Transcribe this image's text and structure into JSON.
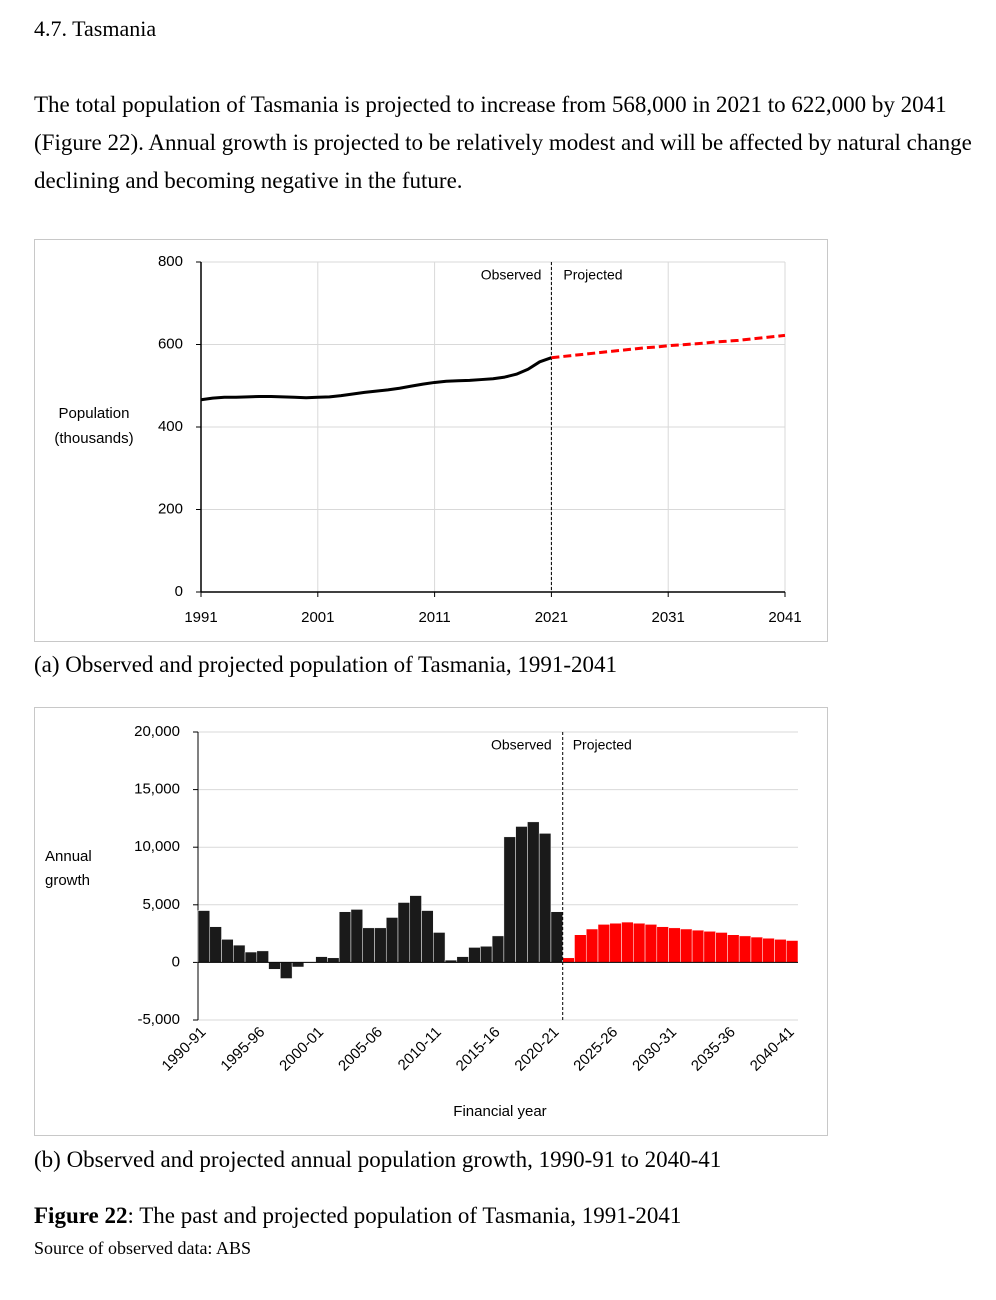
{
  "heading": "4.7. Tasmania",
  "paragraph": "The total population of Tasmania is projected to increase from 568,000 in 2021 to 622,000 by 2041 (Figure 22). Annual growth is projected to be relatively modest and will be affected by natural change declining and becoming negative in the future.",
  "chart_data": [
    {
      "type": "line",
      "ylabel": [
        "Population",
        "(thousands)"
      ],
      "xlim": [
        1991,
        2041
      ],
      "xticks": [
        1991,
        2001,
        2011,
        2021,
        2031,
        2041
      ],
      "ylim": [
        0,
        800
      ],
      "yticks": [
        0,
        200,
        400,
        600,
        800
      ],
      "grid": true,
      "series": [
        {
          "name": "Observed",
          "color": "#000000",
          "line_style": "solid",
          "x": [
            1991,
            1992,
            1993,
            1994,
            1995,
            1996,
            1997,
            1998,
            1999,
            2000,
            2001,
            2002,
            2003,
            2004,
            2005,
            2006,
            2007,
            2008,
            2009,
            2010,
            2011,
            2012,
            2013,
            2014,
            2015,
            2016,
            2017,
            2018,
            2019,
            2020,
            2021
          ],
          "values": [
            466,
            470,
            472,
            472,
            473,
            474,
            474,
            473,
            472,
            471,
            472,
            473,
            476,
            480,
            484,
            487,
            490,
            494,
            499,
            504,
            508,
            511,
            512,
            513,
            515,
            517,
            521,
            528,
            540,
            558,
            568
          ]
        },
        {
          "name": "Projected",
          "color": "#ff0000",
          "line_style": "dashed",
          "x": [
            2021,
            2022,
            2023,
            2024,
            2025,
            2026,
            2027,
            2028,
            2029,
            2030,
            2031,
            2032,
            2033,
            2034,
            2035,
            2036,
            2037,
            2038,
            2039,
            2040,
            2041
          ],
          "values": [
            568,
            571,
            574,
            577,
            580,
            583,
            586,
            589,
            592,
            594,
            597,
            599,
            601,
            603,
            606,
            608,
            610,
            613,
            616,
            619,
            622
          ]
        }
      ]
    },
    {
      "type": "bar",
      "ylabel": [
        "Annual",
        "growth"
      ],
      "xlabel": "Financial year",
      "categories": [
        "1990-91",
        null,
        null,
        null,
        null,
        "1995-96",
        null,
        null,
        null,
        null,
        "2000-01",
        null,
        null,
        null,
        null,
        "2005-06",
        null,
        null,
        null,
        null,
        "2010-11",
        null,
        null,
        null,
        null,
        "2015-16",
        null,
        null,
        null,
        null,
        "2020-21",
        null,
        null,
        null,
        null,
        "2025-26",
        null,
        null,
        null,
        null,
        "2030-31",
        null,
        null,
        null,
        null,
        "2035-36",
        null,
        null,
        null,
        null,
        "2040-41"
      ],
      "ylim": [
        -5000,
        20000
      ],
      "yticks": [
        {
          "value": -5000,
          "label": "-5,000"
        },
        0,
        {
          "value": 5000,
          "label": "5,000"
        },
        {
          "value": 10000,
          "label": "10,000"
        },
        {
          "value": 15000,
          "label": "15,000"
        },
        {
          "value": 20000,
          "label": "20,000"
        }
      ],
      "grid": true,
      "series": [
        {
          "name": "Observed",
          "color": "#1a1a1a",
          "values": [
            4500,
            3100,
            2000,
            1500,
            900,
            1000,
            -600,
            -1400,
            -400,
            0,
            500,
            400,
            4400,
            4600,
            3000,
            3000,
            3900,
            5200,
            5800,
            4500,
            2600,
            200,
            500,
            1300,
            1400,
            2300,
            10900,
            11800,
            12200,
            11200,
            4400,
            null,
            null,
            null,
            null,
            null,
            null,
            null,
            null,
            null,
            null,
            null,
            null,
            null,
            null,
            null,
            null,
            null,
            null,
            null,
            null
          ]
        },
        {
          "name": "Projected",
          "color": "#ff0000",
          "values": [
            null,
            null,
            null,
            null,
            null,
            null,
            null,
            null,
            null,
            null,
            null,
            null,
            null,
            null,
            null,
            null,
            null,
            null,
            null,
            null,
            null,
            null,
            null,
            null,
            null,
            null,
            null,
            null,
            null,
            null,
            null,
            400,
            2400,
            2900,
            3300,
            3400,
            3500,
            3400,
            3300,
            3100,
            3000,
            2900,
            2800,
            2700,
            2600,
            2400,
            2300,
            2200,
            2100,
            2000,
            1900
          ]
        }
      ]
    }
  ],
  "captions": [
    "(a) Observed and projected population of Tasmania, 1991-2041",
    "(b) Observed and projected annual population growth, 1990-91 to 2040-41"
  ],
  "figure_label": "Figure 22",
  "figure_caption": ": The past and projected population of Tasmania, 1991-2041",
  "source": "Source of observed data: ABS"
}
